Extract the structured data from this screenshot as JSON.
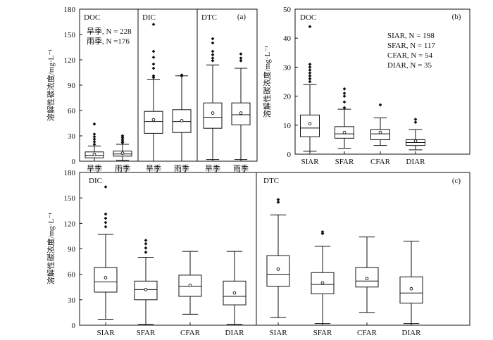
{
  "chart_data": [
    {
      "id": "a",
      "type": "boxplot",
      "panel_label": "(a)",
      "ylabel": "溶解性碳浓度/mg·L⁻¹",
      "ylim": [
        0,
        180
      ],
      "yticks": [
        0,
        30,
        60,
        90,
        120,
        150,
        180
      ],
      "groups": [
        {
          "label": "DOC",
          "annotation": [
            "旱季, N = 228",
            "雨季, N =176"
          ]
        },
        {
          "label": "DIC"
        },
        {
          "label": "DTC"
        }
      ],
      "categories": [
        "旱季",
        "雨季",
        "旱季",
        "雨季",
        "旱季",
        "雨季"
      ],
      "boxes": [
        {
          "group": 0,
          "category": "旱季",
          "whisker_low": 0,
          "q1": 4,
          "median": 7,
          "q3": 11,
          "whisker_high": 18,
          "mean": 8,
          "outliers": [
            20,
            23,
            26,
            29,
            32,
            44
          ]
        },
        {
          "group": 0,
          "category": "雨季",
          "whisker_low": 1,
          "q1": 6,
          "median": 8.5,
          "q3": 12,
          "whisker_high": 20,
          "mean": 9.5,
          "outliers": [
            22,
            24,
            26,
            28,
            30
          ]
        },
        {
          "group": 1,
          "category": "旱季",
          "whisker_low": 0,
          "q1": 33,
          "median": 47,
          "q3": 59,
          "whisker_high": 97,
          "mean": 49,
          "outliers": [
            99,
            101,
            110,
            115,
            123,
            130,
            162
          ]
        },
        {
          "group": 1,
          "category": "雨季",
          "whisker_low": 0,
          "q1": 34,
          "median": 47,
          "q3": 61,
          "whisker_high": 101,
          "mean": 48,
          "outliers": [
            101,
            102
          ]
        },
        {
          "group": 2,
          "category": "旱季",
          "whisker_low": 2,
          "q1": 39,
          "median": 52,
          "q3": 69,
          "whisker_high": 114,
          "mean": 57,
          "outliers": [
            119,
            122,
            126,
            130,
            140,
            145
          ]
        },
        {
          "group": 2,
          "category": "雨季",
          "whisker_low": 2,
          "q1": 43,
          "median": 55,
          "q3": 69,
          "whisker_high": 110,
          "mean": 57,
          "outliers": [
            119,
            122,
            127
          ]
        }
      ]
    },
    {
      "id": "b",
      "type": "boxplot",
      "panel_label": "(b)",
      "group_label": "DOC",
      "ylabel": "溶解性碳浓度/mg·L⁻¹",
      "ylim": [
        0,
        50
      ],
      "yticks": [
        0,
        10,
        20,
        30,
        40,
        50
      ],
      "legend": [
        "SIAR, N = 198",
        "SFAR, N = 117",
        "CFAR, N = 54",
        "DIAR, N = 35"
      ],
      "categories": [
        "SIAR",
        "SFAR",
        "CFAR",
        "DIAR"
      ],
      "boxes": [
        {
          "category": "SIAR",
          "whisker_low": 1,
          "q1": 6,
          "median": 9,
          "q3": 13.5,
          "whisker_high": 24,
          "mean": 10.5,
          "outliers": [
            25,
            26,
            27,
            28,
            29,
            30,
            31,
            44
          ]
        },
        {
          "category": "SFAR",
          "whisker_low": 2,
          "q1": 5.5,
          "median": 7,
          "q3": 9.5,
          "whisker_high": 15.5,
          "mean": 7.5,
          "outliers": [
            16,
            18,
            20,
            21,
            22.5
          ]
        },
        {
          "category": "CFAR",
          "whisker_low": 3,
          "q1": 5,
          "median": 7,
          "q3": 8.5,
          "whisker_high": 12.5,
          "mean": 7.5,
          "outliers": [
            17
          ]
        },
        {
          "category": "DIAR",
          "whisker_low": 1.5,
          "q1": 3,
          "median": 4,
          "q3": 5,
          "whisker_high": 8.5,
          "mean": 4.5,
          "outliers": [
            11,
            12
          ]
        }
      ]
    },
    {
      "id": "c",
      "type": "boxplot",
      "panel_label": "(c)",
      "ylabel": "溶解性碳浓度/mg·L⁻¹",
      "ylim": [
        0,
        180
      ],
      "yticks": [
        0,
        30,
        60,
        90,
        120,
        150,
        180
      ],
      "groups": [
        {
          "label": "DIC"
        },
        {
          "label": "DTC"
        }
      ],
      "categories": [
        "SIAR",
        "SFAR",
        "CFAR",
        "DIAR",
        "SIAR",
        "SFAR",
        "CFAR",
        "DIAR"
      ],
      "boxes": [
        {
          "group": 0,
          "category": "SIAR",
          "whisker_low": 7,
          "q1": 39,
          "median": 51,
          "q3": 68,
          "whisker_high": 107,
          "mean": 56,
          "outliers": [
            116,
            121,
            126,
            131,
            163
          ]
        },
        {
          "group": 0,
          "category": "SFAR",
          "whisker_low": 1,
          "q1": 30,
          "median": 42,
          "q3": 52,
          "whisker_high": 80,
          "mean": 42,
          "outliers": [
            86,
            91,
            96,
            100
          ]
        },
        {
          "group": 0,
          "category": "CFAR",
          "whisker_low": 13,
          "q1": 34,
          "median": 46,
          "q3": 59,
          "whisker_high": 87,
          "mean": 47,
          "outliers": []
        },
        {
          "group": 0,
          "category": "DIAR",
          "whisker_low": 1,
          "q1": 24,
          "median": 34,
          "q3": 52,
          "whisker_high": 87,
          "mean": 38,
          "outliers": []
        },
        {
          "group": 1,
          "category": "SIAR",
          "whisker_low": 9,
          "q1": 46,
          "median": 60,
          "q3": 82,
          "whisker_high": 130,
          "mean": 66,
          "outliers": [
            145,
            148
          ]
        },
        {
          "group": 1,
          "category": "SFAR",
          "whisker_low": 2,
          "q1": 37,
          "median": 48,
          "q3": 62,
          "whisker_high": 93,
          "mean": 50,
          "outliers": [
            108,
            110
          ]
        },
        {
          "group": 1,
          "category": "CFAR",
          "whisker_low": 15,
          "q1": 45,
          "median": 52,
          "q3": 68,
          "whisker_high": 104,
          "mean": 55,
          "outliers": []
        },
        {
          "group": 1,
          "category": "DIAR",
          "whisker_low": 2,
          "q1": 26,
          "median": 38,
          "q3": 57,
          "whisker_high": 99,
          "mean": 43,
          "outliers": []
        }
      ]
    }
  ]
}
